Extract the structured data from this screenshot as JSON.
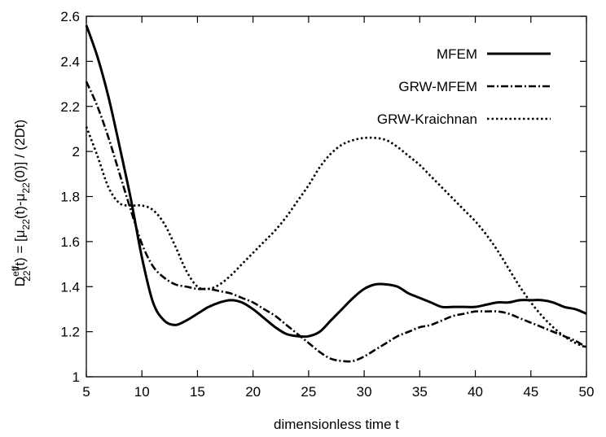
{
  "chart_data": {
    "type": "line",
    "title": "",
    "xlabel": "dimensionless time t",
    "ylabel_parts": {
      "d": "D",
      "sup": "eff",
      "sub1": "22",
      "mid1": "(t) = [μ",
      "sub2": "22",
      "mid2": "(t)-μ",
      "sub3": "22",
      "tail": "(0)] / (2Dt)"
    },
    "xlim": [
      5,
      50
    ],
    "ylim": [
      1,
      2.6
    ],
    "xticks": [
      5,
      10,
      15,
      20,
      25,
      30,
      35,
      40,
      45,
      50
    ],
    "xtick_labels": [
      "5",
      "10",
      "15",
      "20",
      "25",
      "30",
      "35",
      "40",
      "45",
      "50"
    ],
    "yticks": [
      1,
      1.2,
      1.4,
      1.6,
      1.8,
      2,
      2.2,
      2.4,
      2.6
    ],
    "ytick_labels": [
      "1",
      "1.2",
      "1.4",
      "1.6",
      "1.8",
      "2",
      "2.2",
      "2.4",
      "2.6"
    ],
    "grid": false,
    "legend_position": "top-right",
    "series": [
      {
        "name": "MFEM",
        "style": "solid",
        "x": [
          5,
          6,
          7,
          8,
          9,
          10,
          11,
          12,
          13,
          14,
          15,
          16,
          17,
          18,
          19,
          20,
          21,
          22,
          23,
          24,
          25,
          26,
          27,
          28,
          29,
          30,
          31,
          32,
          33,
          34,
          35,
          36,
          37,
          38,
          39,
          40,
          41,
          42,
          43,
          44,
          45,
          46,
          47,
          48,
          49,
          50
        ],
        "y": [
          2.56,
          2.42,
          2.24,
          2.02,
          1.79,
          1.53,
          1.33,
          1.25,
          1.23,
          1.25,
          1.28,
          1.31,
          1.33,
          1.34,
          1.33,
          1.3,
          1.26,
          1.22,
          1.19,
          1.18,
          1.18,
          1.2,
          1.25,
          1.3,
          1.35,
          1.39,
          1.41,
          1.41,
          1.4,
          1.37,
          1.35,
          1.33,
          1.31,
          1.31,
          1.31,
          1.31,
          1.32,
          1.33,
          1.33,
          1.34,
          1.34,
          1.34,
          1.33,
          1.31,
          1.3,
          1.28
        ]
      },
      {
        "name": "GRW-MFEM",
        "style": "dashdot",
        "x": [
          5,
          6,
          7,
          8,
          9,
          10,
          11,
          12,
          13,
          14,
          15,
          16,
          17,
          18,
          19,
          20,
          21,
          22,
          23,
          24,
          25,
          26,
          27,
          28,
          29,
          30,
          31,
          32,
          33,
          34,
          35,
          36,
          37,
          38,
          39,
          40,
          41,
          42,
          43,
          44,
          45,
          46,
          47,
          48,
          49,
          50
        ],
        "y": [
          2.31,
          2.2,
          2.06,
          1.9,
          1.74,
          1.59,
          1.49,
          1.44,
          1.41,
          1.4,
          1.39,
          1.39,
          1.38,
          1.37,
          1.35,
          1.33,
          1.3,
          1.27,
          1.23,
          1.19,
          1.15,
          1.11,
          1.08,
          1.07,
          1.07,
          1.09,
          1.12,
          1.15,
          1.18,
          1.2,
          1.22,
          1.23,
          1.25,
          1.27,
          1.28,
          1.29,
          1.29,
          1.29,
          1.28,
          1.26,
          1.24,
          1.22,
          1.2,
          1.18,
          1.16,
          1.13
        ]
      },
      {
        "name": "GRW-Kraichnan",
        "style": "dotted",
        "x": [
          5,
          6,
          7,
          8,
          9,
          10,
          11,
          12,
          13,
          14,
          15,
          16,
          17,
          18,
          19,
          20,
          21,
          22,
          23,
          24,
          25,
          26,
          27,
          28,
          29,
          30,
          31,
          32,
          33,
          34,
          35,
          36,
          37,
          38,
          39,
          40,
          41,
          42,
          43,
          44,
          45,
          46,
          47,
          48,
          49,
          50
        ],
        "y": [
          2.11,
          1.98,
          1.84,
          1.77,
          1.76,
          1.76,
          1.74,
          1.68,
          1.58,
          1.47,
          1.4,
          1.39,
          1.41,
          1.45,
          1.5,
          1.55,
          1.6,
          1.65,
          1.71,
          1.78,
          1.85,
          1.93,
          1.99,
          2.03,
          2.05,
          2.06,
          2.06,
          2.05,
          2.02,
          1.98,
          1.94,
          1.89,
          1.84,
          1.79,
          1.74,
          1.69,
          1.63,
          1.56,
          1.48,
          1.4,
          1.33,
          1.27,
          1.22,
          1.18,
          1.15,
          1.13
        ]
      }
    ]
  }
}
